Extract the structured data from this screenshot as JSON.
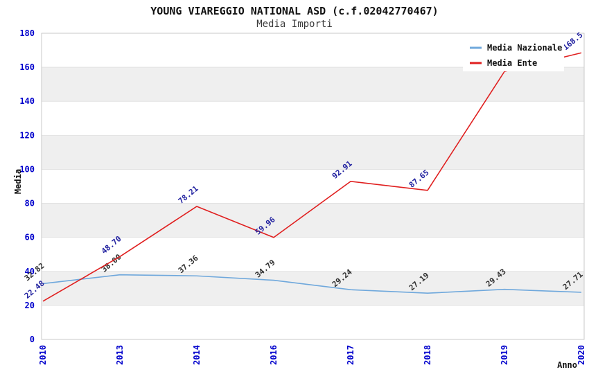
{
  "page": {
    "title": "YOUNG VIAREGGIO NATIONAL ASD (c.f.02042770467)",
    "subtitle": "Media Importi"
  },
  "chart_data": {
    "type": "line",
    "title": "YOUNG VIAREGGIO NATIONAL ASD (c.f.02042770467)",
    "subtitle": "Media Importi",
    "xlabel": "Anno",
    "ylabel": "Media",
    "ylim": [
      0,
      180
    ],
    "ytick_step": 20,
    "yticks": [
      0,
      20,
      40,
      60,
      80,
      100,
      120,
      140,
      160,
      180
    ],
    "categories": [
      "2010",
      "2013",
      "2014",
      "2016",
      "2017",
      "2018",
      "2019",
      "2020"
    ],
    "grid": "horizontal-bands",
    "legend_position": "top-right-inside",
    "series": [
      {
        "name": "Media Nazionale",
        "color": "#6fa8dc",
        "label_color": "#303030",
        "values": [
          32.82,
          38.0,
          37.36,
          34.79,
          29.24,
          27.19,
          29.43,
          27.71
        ],
        "labels": [
          "32.82",
          "38.00",
          "37.36",
          "34.79",
          "29.24",
          "27.19",
          "29.43",
          "27.71"
        ]
      },
      {
        "name": "Media Ente",
        "color": "#e01f1f",
        "label_color": "#2222a0",
        "values": [
          22.48,
          48.7,
          78.21,
          59.96,
          92.91,
          87.65,
          157.5,
          168.5
        ],
        "labels": [
          "22.48",
          "48.70",
          "78.21",
          "59.96",
          "92.91",
          "87.65",
          null,
          "168.5"
        ]
      }
    ],
    "colors": {
      "tick_label": "#0000cc",
      "band": "#efefef",
      "grid": "#e2e2e2",
      "border": "#c9c9c9",
      "legend_bg": "#ffffff"
    }
  }
}
